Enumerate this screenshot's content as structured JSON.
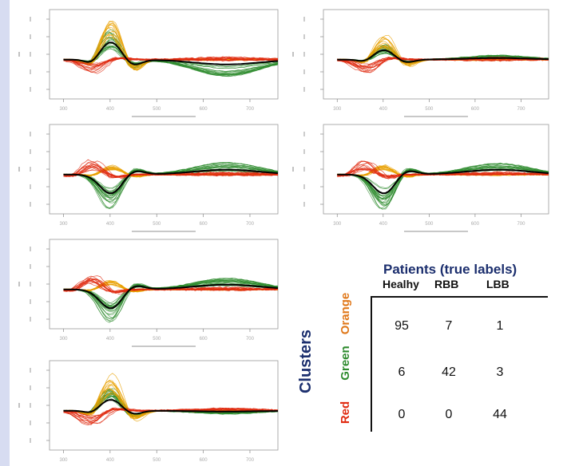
{
  "colors": {
    "orange": "#e8a000",
    "green": "#2e8b2e",
    "red": "#e02a10",
    "black": "#000000",
    "navy": "#1c2f6e"
  },
  "chart_data": [
    {
      "type": "line",
      "panel": "1",
      "x_ticks": [
        "300",
        "400",
        "500",
        "600",
        "700"
      ],
      "xlim": [
        270,
        760
      ],
      "series": [
        {
          "color": "orange"
        },
        {
          "color": "green"
        },
        {
          "color": "red"
        },
        {
          "color": "black"
        }
      ]
    },
    {
      "type": "line",
      "panel": "2",
      "x_ticks": [
        "300",
        "400",
        "500",
        "600",
        "700"
      ],
      "xlim": [
        270,
        760
      ],
      "series": [
        {
          "color": "orange"
        },
        {
          "color": "green"
        },
        {
          "color": "red"
        },
        {
          "color": "black"
        }
      ]
    },
    {
      "type": "line",
      "panel": "3",
      "x_ticks": [
        "300",
        "400",
        "500",
        "600",
        "700"
      ],
      "xlim": [
        270,
        760
      ],
      "series": [
        {
          "color": "orange"
        },
        {
          "color": "green"
        },
        {
          "color": "red"
        },
        {
          "color": "black"
        }
      ]
    },
    {
      "type": "line",
      "panel": "4",
      "x_ticks": [
        "300",
        "400",
        "500",
        "600",
        "700"
      ],
      "xlim": [
        270,
        760
      ],
      "series": [
        {
          "color": "orange"
        },
        {
          "color": "green"
        },
        {
          "color": "red"
        },
        {
          "color": "black"
        }
      ]
    },
    {
      "type": "line",
      "panel": "5",
      "x_ticks": [
        "300",
        "400",
        "500",
        "600",
        "700"
      ],
      "xlim": [
        270,
        760
      ],
      "series": [
        {
          "color": "orange"
        },
        {
          "color": "green"
        },
        {
          "color": "red"
        },
        {
          "color": "black"
        }
      ]
    },
    {
      "type": "line",
      "panel": "6",
      "x_ticks": [
        "300",
        "400",
        "500",
        "600",
        "700"
      ],
      "xlim": [
        270,
        760
      ],
      "series": [
        {
          "color": "orange"
        },
        {
          "color": "green"
        },
        {
          "color": "red"
        },
        {
          "color": "black"
        }
      ]
    },
    {
      "type": "table",
      "title": "Patients (true labels)",
      "row_title": "Clusters",
      "columns": [
        "Healhy",
        "RBB",
        "LBB"
      ],
      "rows": [
        {
          "label": "Orange",
          "values": [
            95,
            7,
            1
          ]
        },
        {
          "label": "Green",
          "values": [
            6,
            42,
            3
          ]
        },
        {
          "label": "Red",
          "values": [
            0,
            0,
            44
          ]
        }
      ]
    }
  ]
}
